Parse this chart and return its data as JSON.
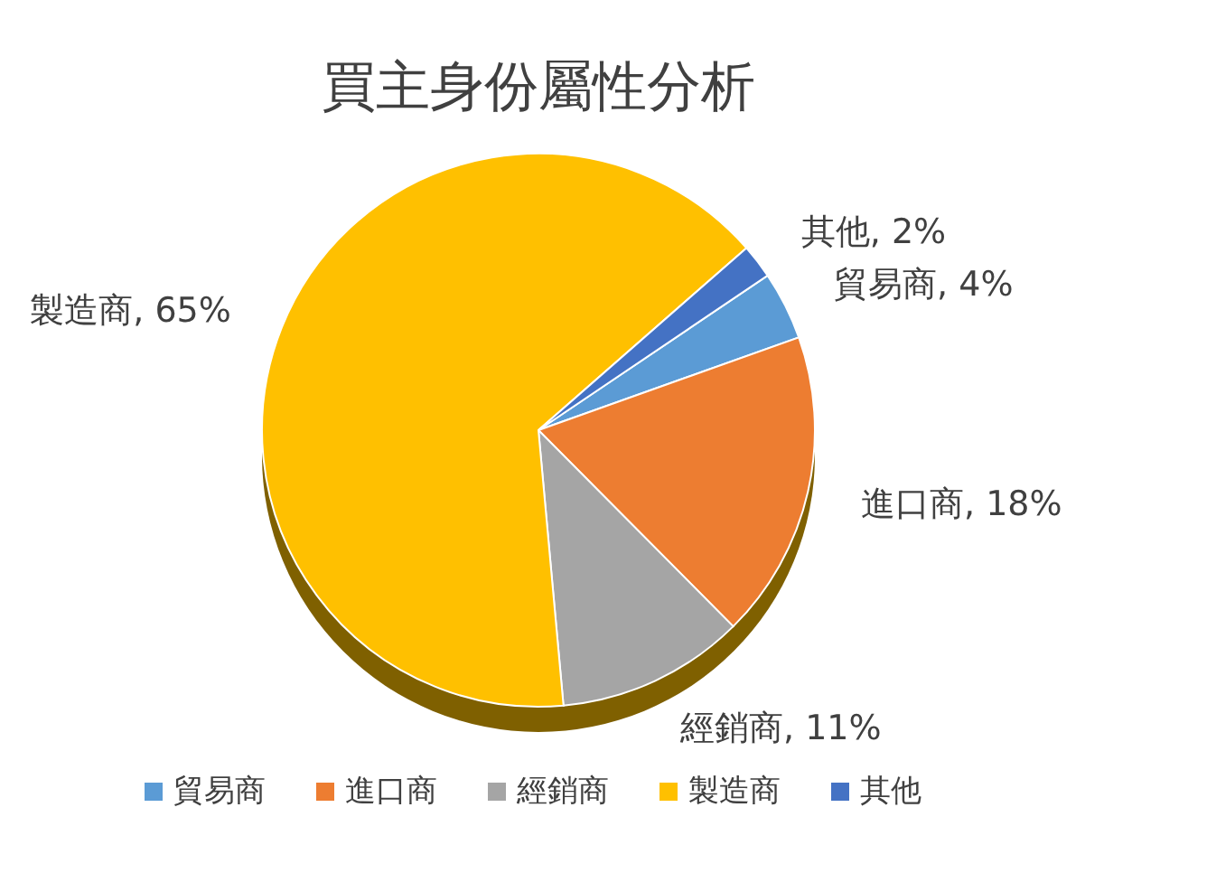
{
  "chart_data": {
    "type": "pie",
    "title": "買主身份屬性分析",
    "categories": [
      "貿易商",
      "進口商",
      "經銷商",
      "製造商",
      "其他"
    ],
    "values": [
      4,
      18,
      11,
      65,
      2
    ],
    "colors": [
      "#5b9bd5",
      "#ed7d31",
      "#a5a5a5",
      "#ffc000",
      "#4472c4"
    ],
    "value_labels": [
      ", 4%",
      ", 18%",
      ", 11%",
      ", 65%",
      ", 2%"
    ],
    "legend": "bottom"
  }
}
